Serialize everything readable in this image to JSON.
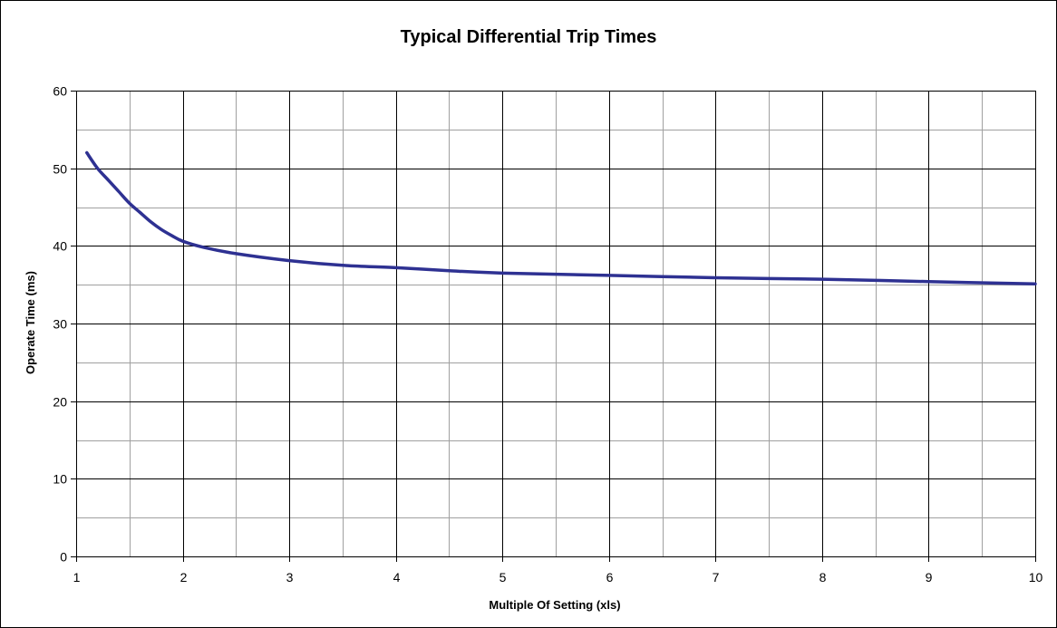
{
  "chart_data": {
    "type": "line",
    "title": "Typical Differential Trip Times",
    "xlabel": "Multiple Of Setting (xls)",
    "ylabel": "Operate Time (ms)",
    "xlim": [
      1,
      10
    ],
    "ylim": [
      0,
      60
    ],
    "x_ticks": [
      1,
      2,
      3,
      4,
      5,
      6,
      7,
      8,
      9,
      10
    ],
    "y_ticks": [
      0,
      10,
      20,
      30,
      40,
      50,
      60
    ],
    "x_minor_step": 0.5,
    "y_minor_step": 5,
    "grid": true,
    "legend": "none",
    "series": [
      {
        "color": "#2e3192",
        "points": [
          [
            1.1,
            52.0
          ],
          [
            1.2,
            50.0
          ],
          [
            1.3,
            48.5
          ],
          [
            1.4,
            47.0
          ],
          [
            1.5,
            45.5
          ],
          [
            1.6,
            44.3
          ],
          [
            1.7,
            43.1
          ],
          [
            1.8,
            42.1
          ],
          [
            1.9,
            41.3
          ],
          [
            2.0,
            40.6
          ],
          [
            2.2,
            39.8
          ],
          [
            2.5,
            39.0
          ],
          [
            3.0,
            38.1
          ],
          [
            3.5,
            37.5
          ],
          [
            4.0,
            37.2
          ],
          [
            4.5,
            36.8
          ],
          [
            5.0,
            36.5
          ],
          [
            6.0,
            36.2
          ],
          [
            7.0,
            35.9
          ],
          [
            8.0,
            35.7
          ],
          [
            9.0,
            35.4
          ],
          [
            10.0,
            35.1
          ]
        ]
      }
    ]
  },
  "colors": {
    "background": "#ffffff",
    "grid_major": "#000000",
    "grid_minor": "#a0a0a0",
    "axis": "#000000",
    "line": "#2e3192"
  }
}
